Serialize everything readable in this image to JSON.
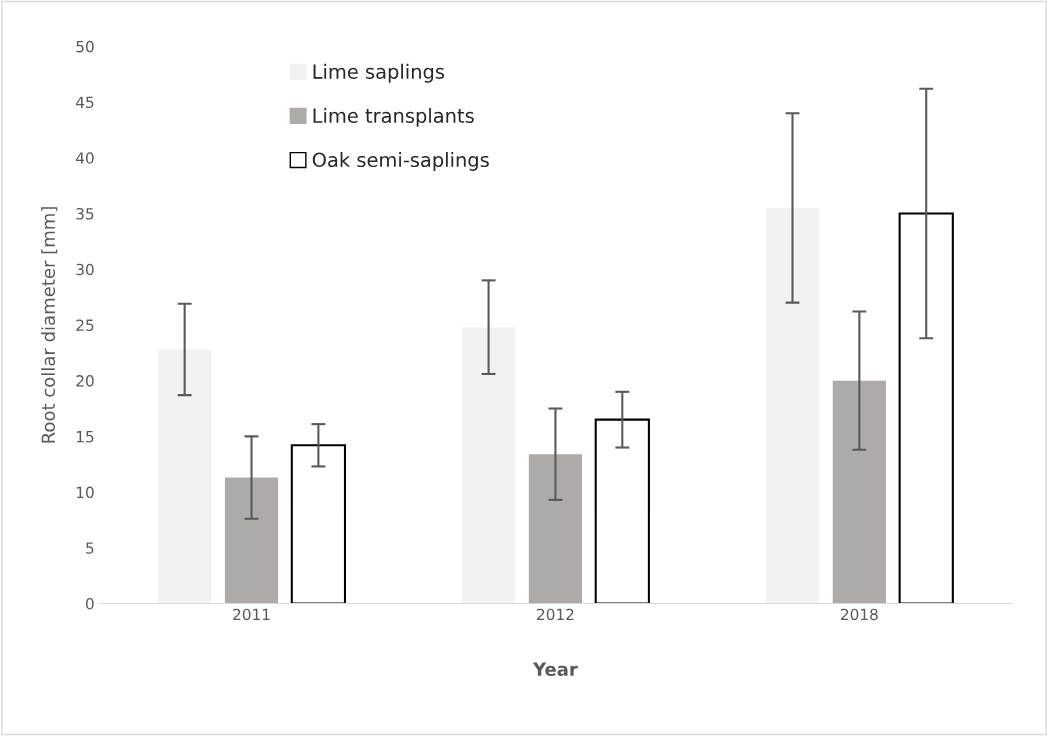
{
  "chart_data": {
    "type": "bar",
    "xlabel": "Year",
    "ylabel": "Root collar diameter [mm]",
    "categories": [
      "2011",
      "2012",
      "2018"
    ],
    "series": [
      {
        "name": "Lime saplings",
        "color": "#f2f2f2",
        "values": [
          22.8,
          24.8,
          35.5
        ],
        "errors": [
          4.1,
          4.2,
          8.5
        ]
      },
      {
        "name": "Lime transplants",
        "color": "#aeaaaa",
        "values": [
          11.3,
          13.4,
          20.0
        ],
        "errors": [
          3.7,
          4.1,
          6.2
        ]
      },
      {
        "name": "Oak semi-saplings",
        "color": "#ffffff",
        "values": [
          14.2,
          16.5,
          35.0
        ],
        "errors": [
          1.9,
          2.5,
          11.2
        ]
      }
    ],
    "ylim": [
      0,
      50
    ],
    "yticks": [
      0,
      5,
      10,
      15,
      20,
      25,
      30,
      35,
      40,
      45,
      50
    ],
    "grid": false,
    "legend": "top left"
  }
}
